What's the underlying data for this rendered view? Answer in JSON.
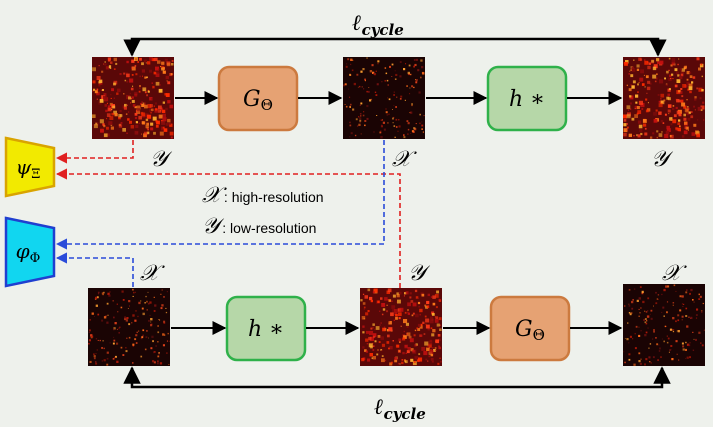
{
  "background": "#eef1ec",
  "loss_top": {
    "main": "ℓ",
    "sub": "cycle"
  },
  "loss_bottom": {
    "main": "ℓ",
    "sub": "cycle"
  },
  "boxes": {
    "top_g": {
      "main": "G",
      "sub": "Θ",
      "fill": "#e6a273",
      "stroke": "#cc7a3f"
    },
    "top_h": {
      "label": "h ∗",
      "fill": "#b6d7a8",
      "stroke": "#2fb14a"
    },
    "bottom_h": {
      "label": "h ∗",
      "fill": "#b6d7a8",
      "stroke": "#2fb14a"
    },
    "bottom_g": {
      "main": "G",
      "sub": "Θ",
      "fill": "#e6a273",
      "stroke": "#cc7a3f"
    }
  },
  "discriminators": {
    "psi": {
      "main": "ψ",
      "sub": "Ξ",
      "fill": "#f2ea00",
      "stroke": "#d9a400"
    },
    "phi": {
      "main": "φ",
      "sub": "Φ",
      "fill": "#11d6f0",
      "stroke": "#1f3fd0"
    }
  },
  "image_labels": {
    "top_left": "𝒴",
    "top_mid": "𝒳",
    "top_right": "𝒴",
    "bottom_left": "𝒳",
    "bottom_mid": "𝒴",
    "bottom_right": "𝒳"
  },
  "legend": {
    "x_symbol": "𝒳",
    "x_text": ": high-resolution",
    "y_symbol": "𝒴",
    "y_text": ": low-resolution"
  },
  "colors": {
    "red_dash": "#e02020",
    "blue_dash": "#2a4bd9",
    "arrow": "#000000"
  }
}
